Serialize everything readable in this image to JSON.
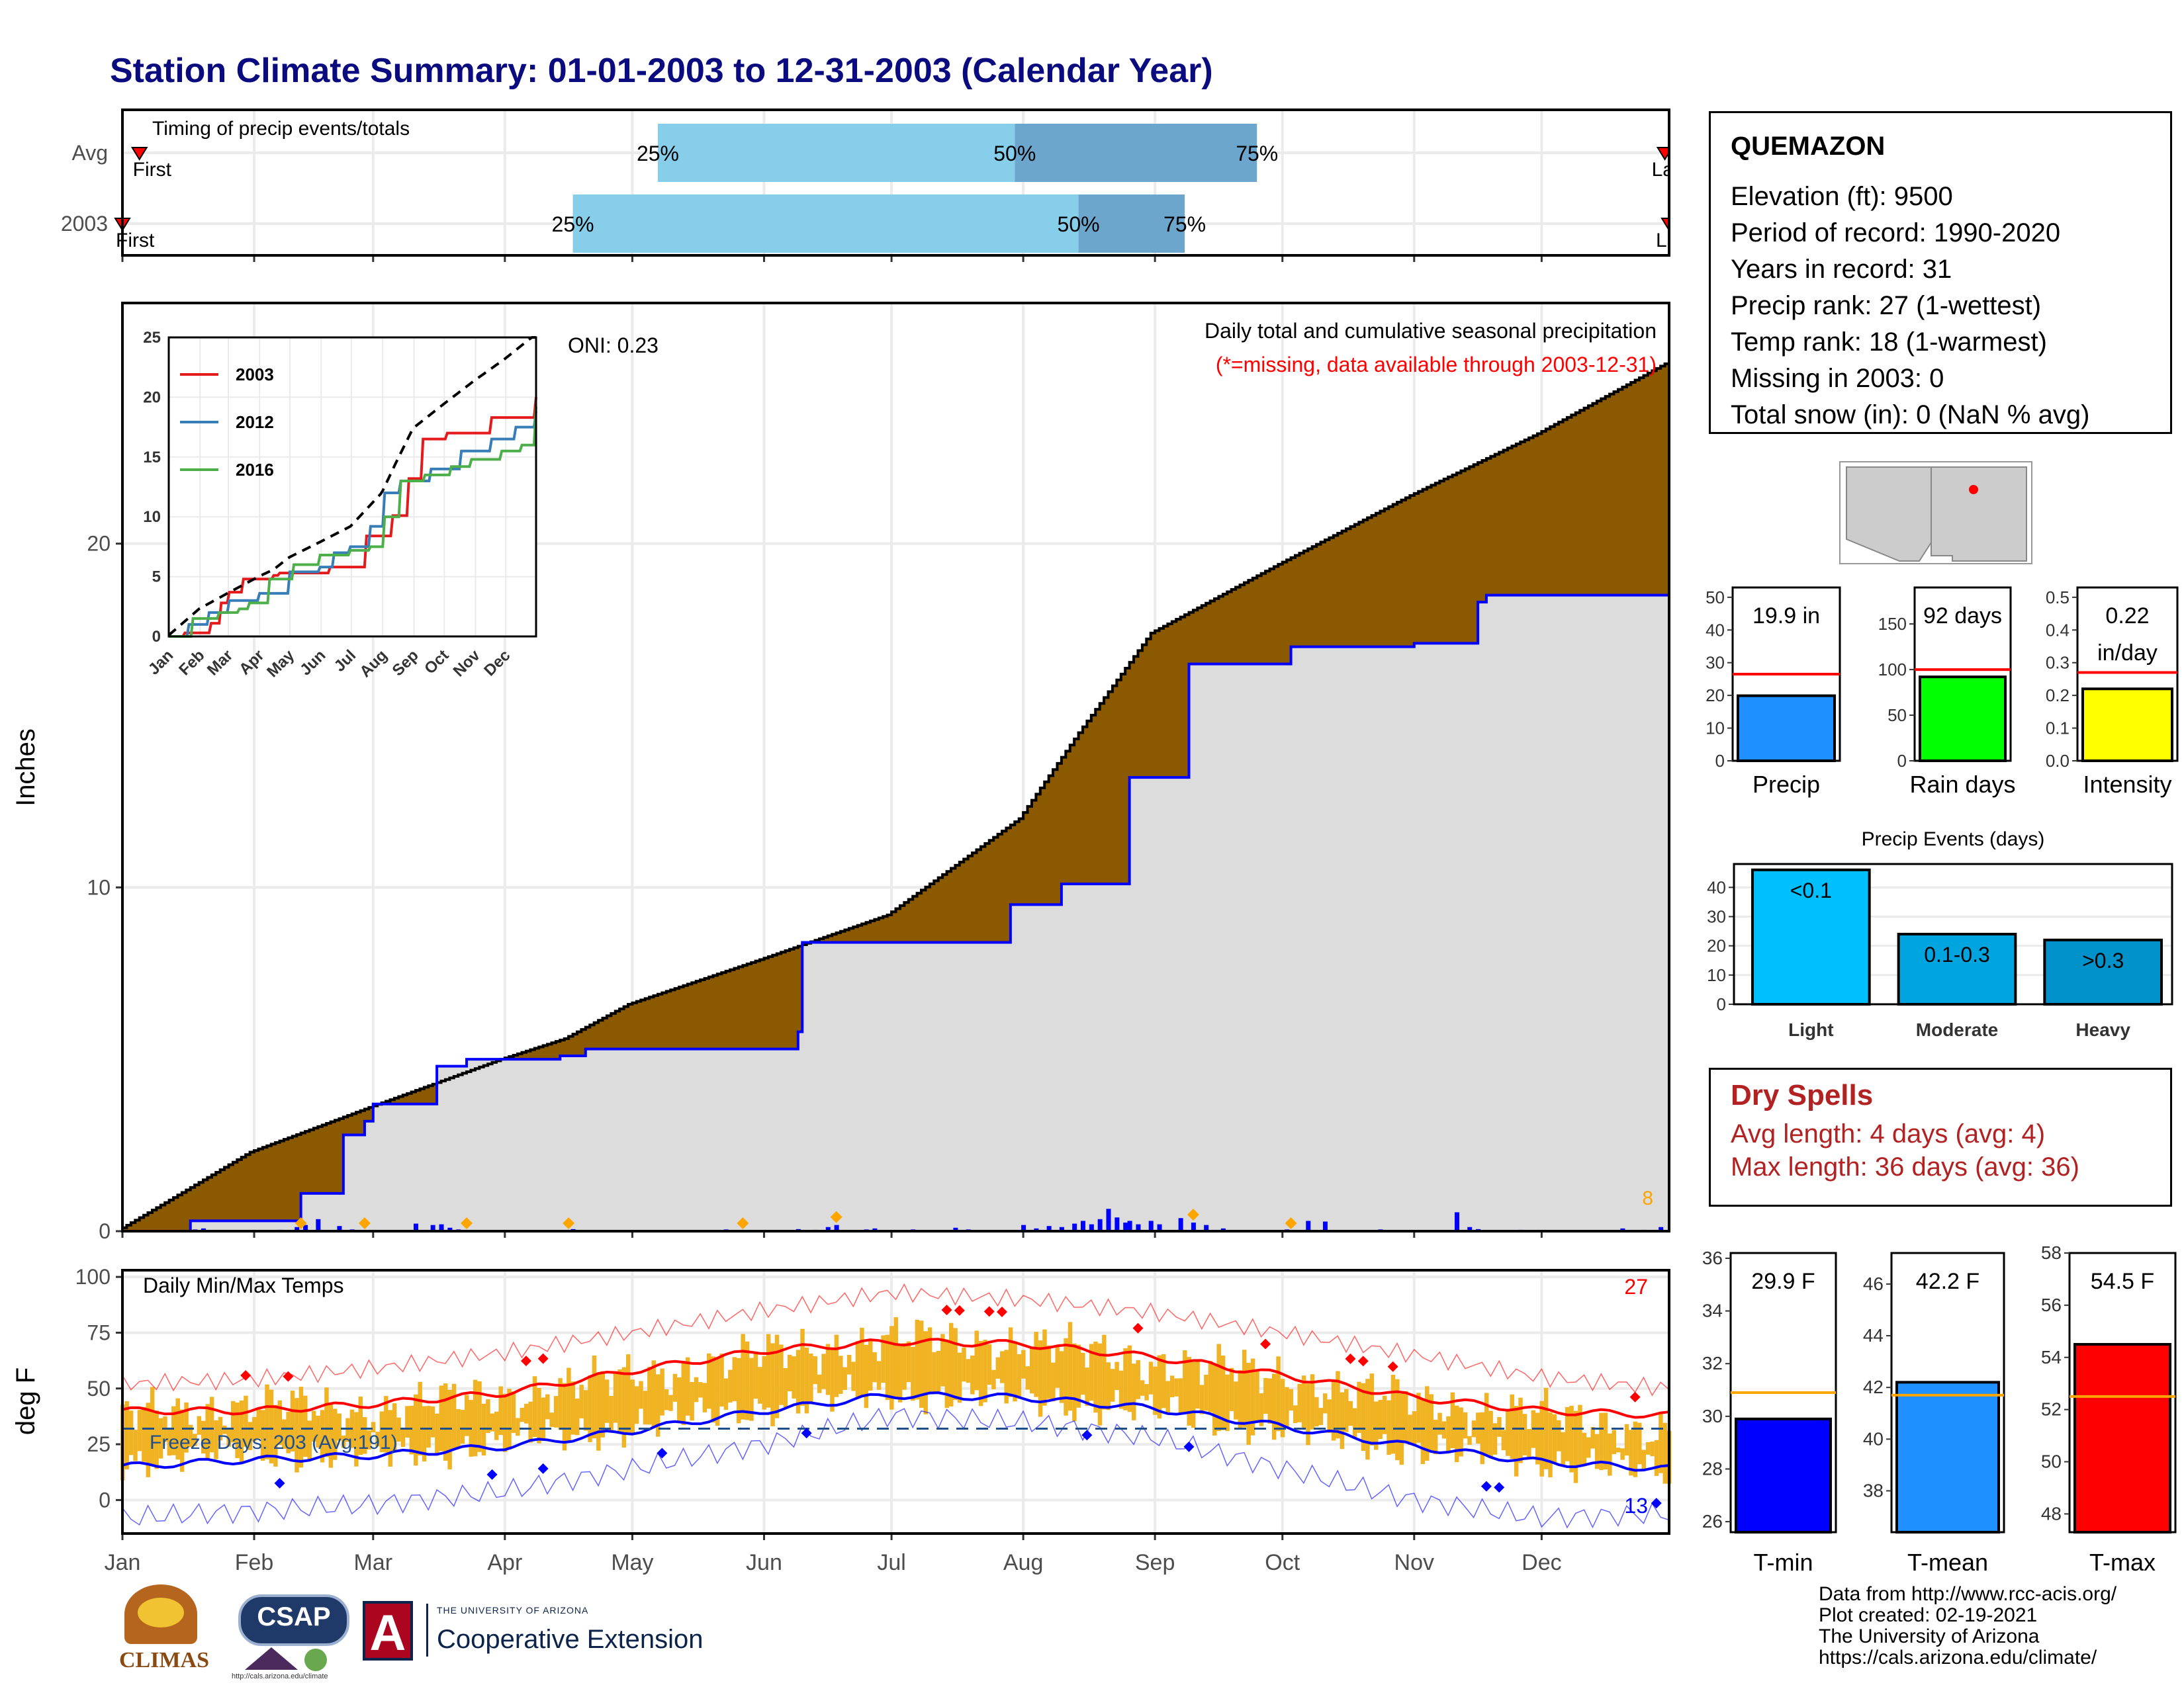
{
  "page": {
    "title": "Station Climate Summary: 01-01-2003 to 12-31-2003 (Calendar Year)",
    "credits": [
      "Data from http://www.rcc-acis.org/",
      "Plot created: 02-19-2021",
      "The University of Arizona",
      "https://cals.arizona.edu/climate/"
    ],
    "logos": {
      "climas": "CLIMAS",
      "csap": "CSAP",
      "csap_url": "http://cals.arizona.edu/climate",
      "ua_small": "THE UNIVERSITY OF ARIZONA",
      "ua_big": "Cooperative Extension"
    }
  },
  "station": {
    "name": "QUEMAZON",
    "lines": [
      "Elevation (ft): 9500",
      "Period of record: 1990-2020",
      "Years in record: 31",
      "Precip rank: 27 (1-wettest)",
      "Temp rank: 18 (1-warmest)",
      "Missing in 2003: 0",
      "Total snow (in): 0 (NaN % avg)"
    ]
  },
  "dry_spells": {
    "title": "Dry Spells",
    "avg": "Avg length: 4 days (avg: 4)",
    "max": "Max length: 36 days (avg: 36)"
  },
  "colors": {
    "title": "#0b0b80",
    "brown": "#8b5a00",
    "cum_fill": "#dcdcdc",
    "precip_blue": "#0000ff",
    "orange": "#ffa500",
    "light_blue": "#87ceeb",
    "mid_blue": "#6ca6cd",
    "tbar": "#f0b323",
    "tmax": "#ff0000",
    "tmin": "#0000ff",
    "dry_red": "#b22222"
  },
  "chart_data": [
    {
      "id": "timing",
      "type": "bar",
      "title": "Timing of precip events/totals",
      "categories": [
        "Avg",
        "2003"
      ],
      "x_ticks": [
        "Jan",
        "Feb",
        "Mar",
        "Apr",
        "May",
        "Jun",
        "Jul",
        "Aug",
        "Sep",
        "Oct",
        "Nov",
        "Dec"
      ],
      "first_label": "First",
      "last_label": "Last",
      "pct_labels": [
        "25%",
        "50%",
        "75%"
      ],
      "bars": [
        {
          "name": "Avg",
          "first_doy": 5,
          "q25_doy": 127,
          "q50_doy": 211,
          "q75_doy": 268,
          "last_doy": 364
        },
        {
          "name": "2003",
          "first_doy": 1,
          "q25_doy": 107,
          "q50_doy": 226,
          "q75_doy": 251,
          "last_doy": 365
        }
      ]
    },
    {
      "id": "cumulative",
      "type": "area",
      "title": "Daily total and cumulative seasonal precipitation",
      "subtitle": "(*=missing, data available through 2003-12-31)",
      "ylabel": "Inches",
      "ylim": [
        0,
        27
      ],
      "y_ticks": [
        0,
        10,
        20
      ],
      "oni": "ONI: 0.23",
      "corner_count": "8",
      "avg_cumulative": {
        "doy": [
          1,
          31,
          59,
          90,
          105,
          120,
          151,
          181,
          212,
          226,
          243,
          273,
          304,
          334,
          365
        ],
        "values": [
          0.1,
          2.3,
          3.6,
          5.0,
          5.6,
          6.6,
          7.9,
          9.2,
          12.0,
          14.5,
          17.4,
          19.4,
          21.4,
          23.2,
          25.3
        ]
      },
      "cum_2003": {
        "doy": [
          1,
          17,
          42,
          43,
          53,
          58,
          60,
          75,
          82,
          104,
          110,
          152,
          160,
          161,
          196,
          210,
          222,
          238,
          252,
          276,
          305,
          320,
          322,
          365
        ],
        "values": [
          0,
          0.3,
          0.3,
          1.1,
          2.8,
          3.2,
          3.7,
          4.8,
          5.0,
          5.1,
          5.3,
          5.3,
          5.8,
          8.4,
          8.4,
          9.5,
          10.1,
          13.2,
          16.5,
          17.0,
          17.1,
          18.3,
          18.5,
          20.0
        ]
      },
      "daily_bars": {
        "doy": [
          18,
          20,
          22,
          28,
          38,
          42,
          44,
          47,
          52,
          55,
          59,
          65,
          70,
          74,
          76,
          78,
          80,
          83,
          95,
          101,
          107,
          120,
          130,
          134,
          143,
          149,
          160,
          164,
          167,
          169,
          176,
          178,
          182,
          187,
          190,
          197,
          200,
          204,
          209,
          213,
          216,
          219,
          222,
          225,
          227,
          229,
          231,
          233,
          235,
          237,
          238,
          240,
          243,
          245,
          250,
          253,
          256,
          260,
          275,
          280,
          284,
          297,
          302,
          315,
          318,
          320,
          330,
          345,
          354,
          359,
          363
        ],
        "values": [
          0.05,
          0.08,
          0.02,
          0.03,
          0.04,
          0.12,
          0.18,
          0.35,
          0.15,
          0.05,
          0.03,
          0.02,
          0.22,
          0.18,
          0.2,
          0.1,
          0.05,
          0.03,
          0.02,
          0.03,
          0.06,
          0.02,
          0.03,
          0.02,
          0.05,
          0.03,
          0.06,
          0.04,
          0.12,
          0.18,
          0.05,
          0.08,
          0.03,
          0.05,
          0.02,
          0.1,
          0.05,
          0.03,
          0.02,
          0.18,
          0.08,
          0.15,
          0.12,
          0.22,
          0.3,
          0.2,
          0.35,
          0.65,
          0.4,
          0.25,
          0.3,
          0.2,
          0.3,
          0.2,
          0.38,
          0.25,
          0.18,
          0.08,
          0.05,
          0.3,
          0.28,
          0.05,
          0.03,
          0.55,
          0.12,
          0.06,
          0.04,
          0.03,
          0.08,
          0.04,
          0.12
        ]
      },
      "orange_markers_doy": [
        43,
        58,
        82,
        106,
        147,
        169,
        253,
        276
      ],
      "inset": {
        "x_ticks": [
          "Jan",
          "Feb",
          "Mar",
          "Apr",
          "May",
          "Jun",
          "Jul",
          "Aug",
          "Sep",
          "Oct",
          "Nov",
          "Dec"
        ],
        "y_ticks": [
          0,
          5,
          10,
          15,
          20,
          25
        ],
        "ylim": [
          0,
          25
        ],
        "series": [
          {
            "name": "2003",
            "color": "#e41a1c",
            "doy": [
              1,
              17,
              43,
              53,
              60,
              75,
              104,
              110,
              160,
              196,
              222,
              238,
              252,
              276,
              320,
              365
            ],
            "values": [
              0,
              0.3,
              1.1,
              2.8,
              3.7,
              4.8,
              5.1,
              5.3,
              5.8,
              8.4,
              10.1,
              13.2,
              16.5,
              17.0,
              18.3,
              20.0
            ]
          },
          {
            "name": "2012",
            "color": "#377eb8",
            "doy": [
              1,
              20,
              40,
              60,
              90,
              120,
              150,
              165,
              180,
              200,
              215,
              230,
              260,
              290,
              320,
              345,
              365
            ],
            "values": [
              0,
              1.0,
              2.0,
              3.0,
              3.6,
              5.4,
              5.8,
              7.0,
              7.5,
              9.2,
              12.0,
              13.0,
              14.0,
              15.5,
              16.5,
              17.5,
              18.8
            ]
          },
          {
            "name": "2016",
            "color": "#4daf4a",
            "doy": [
              1,
              25,
              50,
              70,
              80,
              100,
              125,
              150,
              180,
              200,
              215,
              230,
              255,
              280,
              300,
              330,
              350,
              365
            ],
            "values": [
              0,
              1.5,
              2.0,
              2.3,
              2.8,
              4.8,
              6.0,
              6.8,
              7.2,
              7.5,
              10.0,
              13.0,
              13.5,
              14.2,
              14.8,
              15.5,
              16.0,
              19.2
            ]
          },
          {
            "name": "avg",
            "color": "#000000",
            "dashed": true,
            "doy": [
              1,
              31,
              59,
              90,
              105,
              120,
              151,
              181,
              212,
              226,
              243,
              273,
              304,
              334,
              365
            ],
            "values": [
              0.1,
              2.3,
              3.6,
              5.0,
              5.6,
              6.6,
              7.9,
              9.2,
              12.0,
              14.5,
              17.4,
              19.4,
              21.4,
              23.2,
              25.3
            ]
          }
        ]
      }
    },
    {
      "id": "temps",
      "type": "line",
      "title": "Daily Min/Max Temps",
      "ylabel": "deg F",
      "ylim": [
        -15,
        103
      ],
      "y_ticks": [
        0,
        25,
        50,
        75,
        100
      ],
      "x_ticks": [
        "Jan",
        "Feb",
        "Mar",
        "Apr",
        "May",
        "Jun",
        "Jul",
        "Aug",
        "Sep",
        "Oct",
        "Nov",
        "Dec"
      ],
      "freeze_text": "Freeze Days: 203 (Avg:191)",
      "freeze_level": 32,
      "count_top": "27",
      "count_bottom": "13",
      "avg_max_normals": {
        "doy": [
          1,
          31,
          60,
          91,
          121,
          152,
          182,
          213,
          244,
          274,
          305,
          335,
          365
        ],
        "values": [
          40,
          40,
          43,
          48,
          58,
          67,
          71,
          70,
          64,
          56,
          46,
          40,
          38
        ]
      },
      "avg_min_normals": {
        "doy": [
          1,
          31,
          60,
          91,
          121,
          152,
          182,
          213,
          244,
          274,
          305,
          335,
          365
        ],
        "values": [
          15,
          18,
          20,
          24,
          31,
          40,
          47,
          46,
          41,
          33,
          24,
          17,
          14
        ]
      },
      "record_max": {
        "doy": [
          1,
          31,
          60,
          91,
          121,
          152,
          182,
          213,
          244,
          274,
          305,
          335,
          365
        ],
        "values": [
          52,
          54,
          59,
          66,
          75,
          85,
          93,
          90,
          84,
          75,
          65,
          55,
          50
        ]
      },
      "record_min": {
        "doy": [
          1,
          31,
          60,
          91,
          121,
          152,
          182,
          213,
          244,
          274,
          305,
          335,
          365
        ],
        "values": [
          -8,
          -5,
          -2,
          4,
          14,
          25,
          38,
          35,
          28,
          14,
          0,
          -8,
          -6
        ]
      },
      "daily_max_smooth": {
        "doy": [
          1,
          31,
          60,
          91,
          121,
          152,
          182,
          213,
          244,
          274,
          305,
          335,
          365
        ],
        "values": [
          38,
          42,
          40,
          47,
          55,
          65,
          72,
          70,
          62,
          55,
          44,
          38,
          30
        ]
      },
      "daily_min_smooth": {
        "doy": [
          1,
          31,
          60,
          91,
          121,
          152,
          182,
          213,
          244,
          274,
          305,
          335,
          365
        ],
        "values": [
          18,
          22,
          20,
          26,
          33,
          42,
          48,
          46,
          40,
          32,
          23,
          18,
          12
        ]
      },
      "red_markers_doy": [
        30,
        40,
        96,
        100,
        195,
        198,
        205,
        208,
        240,
        270,
        290,
        293,
        300,
        357
      ],
      "blue_markers_doy": [
        38,
        88,
        100,
        128,
        162,
        228,
        252,
        322,
        325,
        362
      ]
    },
    {
      "id": "precip_stats",
      "type": "bar",
      "panels": [
        {
          "name": "Precip",
          "value": 19.9,
          "label": "19.9 in",
          "avg": 26.5,
          "ylim": [
            0,
            53
          ],
          "y_ticks": [
            0,
            10,
            20,
            30,
            40,
            50
          ],
          "color": "#1e90ff"
        },
        {
          "name": "Rain days",
          "value": 92,
          "label": "92 days",
          "avg": 100,
          "ylim": [
            0,
            190
          ],
          "y_ticks": [
            0,
            50,
            100,
            150
          ],
          "color": "#00ff00"
        },
        {
          "name": "Intensity",
          "value": 0.22,
          "label": "0.22 in/day",
          "label_lines": [
            "0.22",
            "in/day"
          ],
          "avg": 0.27,
          "ylim": [
            0,
            0.53
          ],
          "y_ticks": [
            0.0,
            0.1,
            0.2,
            0.3,
            0.4,
            0.5
          ],
          "color": "#ffff00"
        }
      ]
    },
    {
      "id": "precip_events",
      "type": "bar",
      "title": "Precip Events (days)",
      "categories": [
        "Light",
        "Moderate",
        "Heavy"
      ],
      "labels": [
        "<0.1",
        "0.1-0.3",
        ">0.3"
      ],
      "values": [
        46,
        24,
        22
      ],
      "colors": [
        "#00bfff",
        "#00a5e0",
        "#0092c8"
      ],
      "ylim": [
        0,
        48
      ],
      "y_ticks": [
        0,
        10,
        20,
        30,
        40
      ]
    },
    {
      "id": "temp_stats",
      "type": "bar",
      "panels": [
        {
          "name": "T-min",
          "value": 29.9,
          "label": "29.9 F",
          "avg": 30.9,
          "ylim": [
            25.6,
            36.2
          ],
          "y_ticks": [
            26,
            28,
            30,
            32,
            34,
            36
          ],
          "color": "#0000ff"
        },
        {
          "name": "T-mean",
          "value": 42.2,
          "label": "42.2 F",
          "avg": 41.7,
          "ylim": [
            36.4,
            47.2
          ],
          "y_ticks": [
            38,
            40,
            42,
            44,
            46
          ],
          "color": "#1e90ff"
        },
        {
          "name": "T-max",
          "value": 54.5,
          "label": "54.5 F",
          "avg": 52.5,
          "ylim": [
            47.3,
            58
          ],
          "y_ticks": [
            48,
            50,
            52,
            54,
            56,
            58
          ],
          "color": "#ff0000"
        }
      ]
    }
  ]
}
